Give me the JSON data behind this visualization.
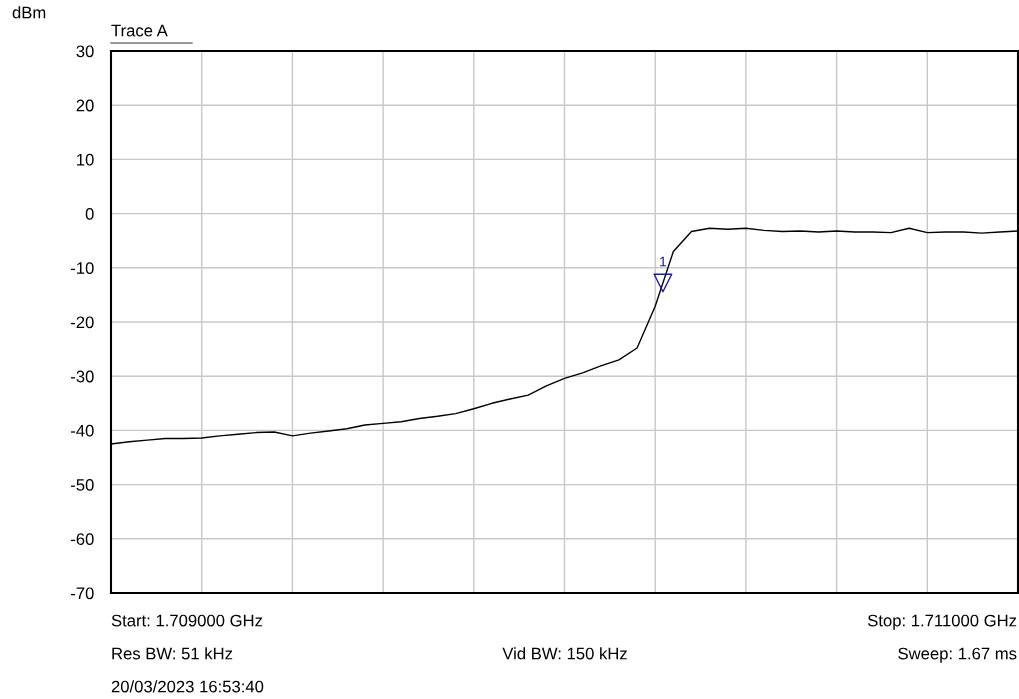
{
  "chart_data": {
    "type": "line",
    "title": "Trace A",
    "ylabel": "dBm",
    "categories": [
      null,
      null,
      null,
      null,
      null,
      null,
      null,
      null,
      null,
      null,
      null,
      null,
      null,
      null,
      null,
      null,
      null,
      null,
      null,
      null,
      null,
      null,
      null,
      null,
      null,
      null,
      null,
      null,
      null,
      null,
      null,
      null,
      null,
      null,
      null,
      null,
      null,
      null,
      null,
      null,
      null,
      null,
      null,
      null,
      null,
      null,
      null,
      null,
      null,
      null,
      null
    ],
    "series": [
      {
        "color": "#000000",
        "values": [
          -42.5,
          -42.1,
          -41.8,
          -41.5,
          -41.5,
          -41.4,
          -41.0,
          -40.7,
          -40.4,
          -40.3,
          -41.0,
          -40.5,
          -40.1,
          -39.7,
          -39.0,
          -38.7,
          -38.4,
          -37.8,
          -37.4,
          -36.9,
          -36.0,
          -35.0,
          -34.2,
          -33.5,
          -31.8,
          -30.4,
          -29.4,
          -28.1,
          -27.0,
          -24.8,
          -17.1,
          -7.0,
          -3.3,
          -2.7,
          -2.9,
          -2.7,
          -3.1,
          -3.3,
          -3.2,
          -3.4,
          -3.2,
          -3.4,
          -3.4,
          -3.5,
          -2.7,
          -3.5,
          -3.4,
          -3.4,
          -3.6,
          -3.4,
          -3.2
        ]
      }
    ],
    "ylim": [
      -70,
      30
    ],
    "yticks": [
      {
        "value": -70,
        "label": "-70"
      },
      {
        "value": -60,
        "label": "-60"
      },
      {
        "value": -50,
        "label": "-50"
      },
      {
        "value": -40,
        "label": "-40"
      },
      {
        "value": -30,
        "label": "-30"
      },
      {
        "value": -20,
        "label": "-20"
      },
      {
        "value": -10,
        "label": "-10"
      },
      {
        "value": 0,
        "label": "0"
      },
      {
        "value": 10,
        "label": "10"
      },
      {
        "value": 20,
        "label": "20"
      },
      {
        "value": 30,
        "label": "30"
      }
    ],
    "tick_labels": "y",
    "grid": true,
    "marker": "none",
    "line_style": "solid",
    "annotations": [
      {
        "text": "1",
        "y": -12.8
      },
      "Start: 1.709000 GHz",
      "Stop: 1.711000 GHz",
      "Res BW: 51 kHz",
      "Vid BW: 150 kHz",
      "Sweep: 1.67 ms",
      "20/03/2023 16:53:40"
    ]
  }
}
